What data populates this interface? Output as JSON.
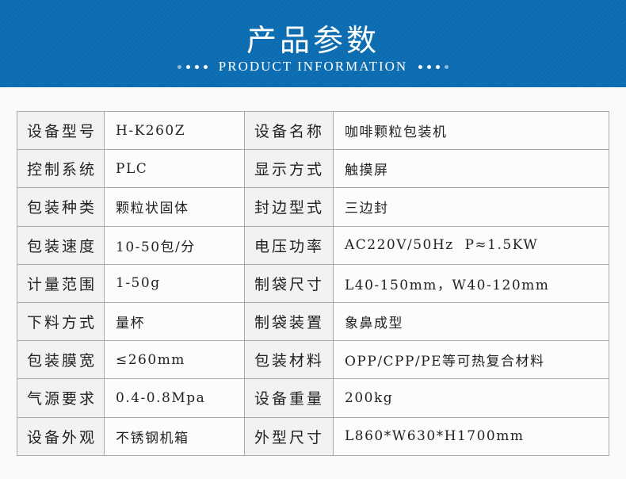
{
  "header": {
    "title": "产品参数",
    "subtitle": "PRODUCT INFORMATION"
  },
  "rows": [
    {
      "l1": "设备型号",
      "v1": "H-K260Z",
      "l2": "设备名称",
      "v2": "咖啡颗粒包装机"
    },
    {
      "l1": "控制系统",
      "v1": "PLC",
      "l2": "显示方式",
      "v2": "触摸屏"
    },
    {
      "l1": "包装种类",
      "v1": "颗粒状固体",
      "l2": "封边型式",
      "v2": "三边封"
    },
    {
      "l1": "包装速度",
      "v1": "10-50包/分",
      "l2": "电压功率",
      "v2": "AC220V/50Hz  P≈1.5KW"
    },
    {
      "l1": "计量范围",
      "v1": "1-50g",
      "l2": "制袋尺寸",
      "v2": "L40-150mm，W40-120mm"
    },
    {
      "l1": "下料方式",
      "v1": "量杯",
      "l2": "制袋装置",
      "v2": "象鼻成型"
    },
    {
      "l1": "包装膜宽",
      "v1": "≤260mm",
      "l2": "包装材料",
      "v2": "OPP/CPP/PE等可热复合材料"
    },
    {
      "l1": "气源要求",
      "v1": "0.4-0.8Mpa",
      "l2": "设备重量",
      "v2": "200kg"
    },
    {
      "l1": "设备外观",
      "v1": "不锈钢机箱",
      "l2": "外型尺寸",
      "v2": "L860*W630*H1700mm"
    }
  ]
}
